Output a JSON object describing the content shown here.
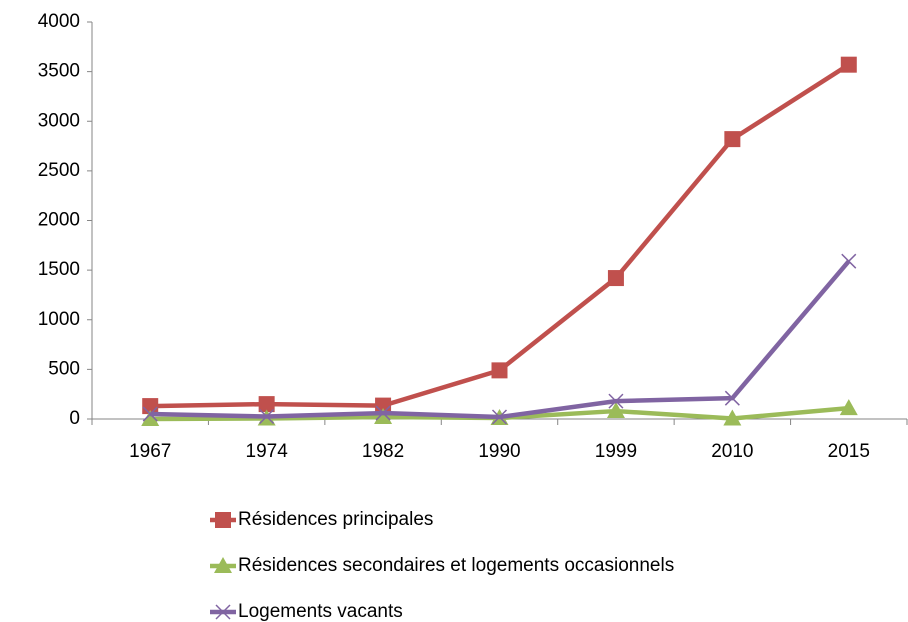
{
  "chart_data": {
    "type": "line",
    "categories": [
      "1967",
      "1974",
      "1982",
      "1990",
      "1999",
      "2010",
      "2015"
    ],
    "series": [
      {
        "name": "Résidences principales",
        "color": "#c0504d",
        "marker": "square",
        "values": [
          130,
          150,
          135,
          490,
          1420,
          2820,
          3570
        ]
      },
      {
        "name": "Résidences secondaires et logements occasionnels",
        "color": "#9bbb59",
        "marker": "triangle",
        "values": [
          0,
          5,
          20,
          10,
          80,
          5,
          110
        ]
      },
      {
        "name": "Logements vacants",
        "color": "#8064a2",
        "marker": "x",
        "values": [
          50,
          25,
          60,
          20,
          180,
          210,
          1590
        ]
      }
    ],
    "ylim": [
      0,
      4000
    ],
    "yticks": [
      0,
      500,
      1000,
      1500,
      2000,
      2500,
      3000,
      3500,
      4000
    ],
    "grid": false,
    "legend": "bottom"
  }
}
